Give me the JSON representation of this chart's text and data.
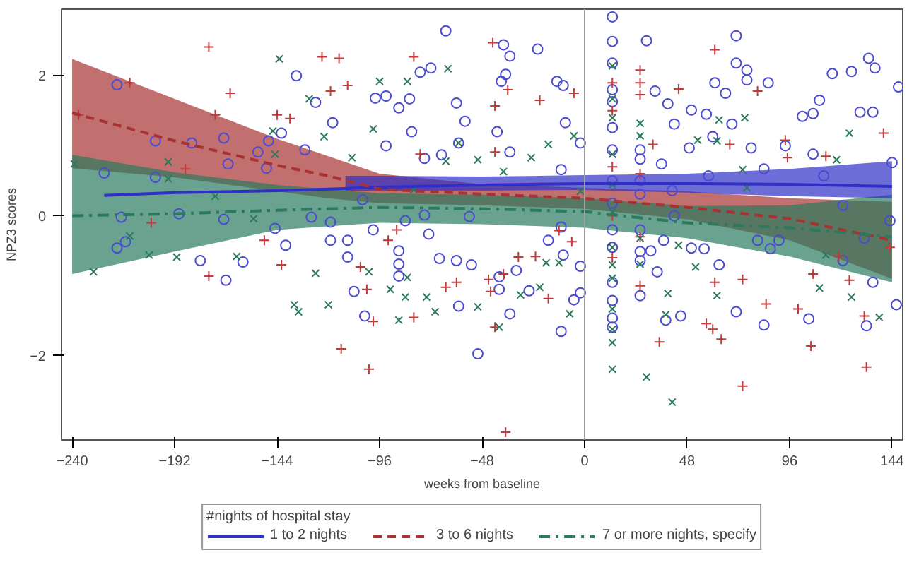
{
  "chart_data": {
    "type": "scatter",
    "xlabel": "weeks from baseline",
    "ylabel": "NPZ3 scores",
    "legend_title": "#nights of hospital stay",
    "legend": "bottom",
    "grid": false,
    "xlim": [
      -245,
      149
    ],
    "ylim": [
      -3.2,
      2.95
    ],
    "xticks": [
      -240,
      -192,
      -144,
      -96,
      -48,
      0,
      48,
      96,
      144
    ],
    "yticks": [
      -2,
      0,
      2
    ],
    "ref_lines": [
      {
        "axis": "x",
        "value": 0,
        "color": "#a0a0a0"
      }
    ],
    "series": [
      {
        "type": "line",
        "name": "1 to 2 nights",
        "color": "#2f2fc8",
        "line_style": "solid",
        "x": [
          -225,
          -192,
          -144,
          -112,
          -96,
          -48,
          0,
          48,
          96,
          144
        ],
        "values": [
          0.29,
          0.33,
          0.36,
          0.39,
          0.41,
          0.44,
          0.46,
          0.46,
          0.45,
          0.42
        ],
        "lower": [
          null,
          null,
          null,
          0.36,
          0.36,
          0.36,
          0.37,
          0.33,
          0.28,
          0.25
        ],
        "upper": [
          null,
          null,
          null,
          0.57,
          0.57,
          0.56,
          0.58,
          0.6,
          0.67,
          0.78
        ]
      },
      {
        "type": "line",
        "name": "3 to 6 nights",
        "color": "#a83232",
        "line_style": "dashed",
        "x": [
          -240,
          -192,
          -144,
          -120,
          -96,
          -48,
          0,
          48,
          96,
          144
        ],
        "values": [
          1.47,
          1.07,
          0.72,
          0.57,
          0.38,
          0.31,
          0.25,
          0.12,
          -0.04,
          -0.35
        ],
        "lower": [
          0.68,
          0.55,
          0.35,
          0.25,
          0.18,
          0.15,
          0.1,
          -0.05,
          -0.35,
          -0.9
        ],
        "upper": [
          2.24,
          1.67,
          1.1,
          0.85,
          0.6,
          0.45,
          0.4,
          0.35,
          0.25,
          0.2
        ]
      },
      {
        "type": "line",
        "name": "7 or more nights, specify",
        "color": "#2a7a5e",
        "line_style": "dashdot",
        "x": [
          -240,
          -192,
          -144,
          -96,
          -48,
          0,
          48,
          96,
          144
        ],
        "values": [
          0.0,
          0.03,
          0.08,
          0.12,
          0.1,
          0.06,
          -0.1,
          -0.17,
          -0.3
        ],
        "lower": [
          -0.83,
          -0.51,
          -0.2,
          -0.1,
          -0.12,
          -0.17,
          -0.32,
          -0.58,
          -0.95
        ],
        "upper": [
          0.87,
          0.62,
          0.44,
          0.32,
          0.3,
          0.25,
          0.14,
          0.15,
          0.3
        ]
      },
      {
        "marker": "circle",
        "color": "#4b4bd2",
        "x": [
          -219,
          -225,
          -217,
          -219,
          -215,
          -201,
          -201,
          -190,
          -184,
          -180,
          -169,
          -167,
          -169,
          -168,
          -160,
          -153,
          -149,
          -148,
          -145,
          -142,
          -140,
          -135,
          -131,
          -128,
          -126,
          -119,
          -118,
          -119,
          -111,
          -111,
          -108,
          -103,
          -104,
          -99,
          -98,
          -93,
          -93,
          -87,
          -82,
          -81,
          -87,
          -87,
          -87,
          -77,
          -75,
          -72,
          -67,
          -65,
          -60,
          -59,
          -60,
          -59,
          -68,
          -73,
          -75,
          -84,
          -38,
          -35,
          -22,
          -37,
          -39,
          -13,
          -10,
          -56,
          -41,
          -9,
          -2,
          -11,
          -35,
          -54,
          -11,
          -17,
          -10,
          -2,
          -53,
          -40,
          -32,
          -26,
          -40,
          -35,
          -11,
          -50,
          -5,
          -2,
          13,
          13,
          13,
          13,
          13,
          13,
          13,
          13,
          13,
          13,
          13,
          13,
          13,
          13,
          13,
          26,
          26,
          26,
          26,
          26,
          26,
          26,
          26,
          29,
          33,
          39,
          42,
          36,
          41,
          50,
          49,
          57,
          60,
          61,
          66,
          71,
          71,
          76,
          76,
          86,
          69,
          78,
          84,
          58,
          42,
          37,
          31,
          50,
          56,
          63,
          34,
          38,
          45,
          71,
          84,
          87,
          91,
          94,
          102,
          107,
          110,
          107,
          116,
          125,
          133,
          136,
          129,
          135,
          121,
          131,
          121,
          135,
          132,
          105,
          147,
          144,
          143,
          146,
          112,
          81
        ],
        "values": [
          1.87,
          0.61,
          -0.02,
          -0.46,
          -0.37,
          1.07,
          0.55,
          0.03,
          1.04,
          -0.64,
          1.11,
          0.74,
          -0.05,
          -0.92,
          -0.66,
          0.91,
          0.68,
          1.07,
          -0.18,
          1.18,
          -0.42,
          2.0,
          0.94,
          -0.02,
          1.62,
          -0.35,
          1.33,
          -0.09,
          -0.35,
          -0.59,
          -1.08,
          -1.43,
          0.23,
          -0.2,
          1.68,
          1.71,
          1.0,
          1.54,
          1.67,
          1.2,
          -0.69,
          -0.86,
          -0.5,
          2.05,
          0.82,
          2.11,
          0.87,
          2.64,
          1.61,
          1.04,
          -0.64,
          -1.29,
          -0.61,
          -0.26,
          0.01,
          -0.07,
          2.44,
          2.28,
          2.38,
          2.02,
          1.92,
          1.92,
          1.86,
          1.35,
          1.2,
          1.33,
          1.04,
          0.66,
          0.91,
          -0.01,
          -0.16,
          -0.35,
          -0.56,
          -0.72,
          -0.7,
          -0.87,
          -0.78,
          -1.07,
          -1.05,
          -1.4,
          -1.65,
          -1.97,
          -1.2,
          -1.1,
          2.84,
          2.49,
          2.18,
          1.8,
          1.63,
          1.26,
          0.94,
          0.5,
          0.18,
          -0.2,
          -0.45,
          -0.95,
          -1.21,
          -1.46,
          -1.59,
          0.94,
          0.81,
          0.5,
          0.31,
          -0.2,
          -0.51,
          -0.64,
          -1.14,
          2.5,
          1.78,
          1.6,
          1.31,
          0.74,
          0.36,
          1.51,
          0.97,
          1.45,
          1.13,
          1.9,
          1.75,
          2.57,
          2.18,
          2.08,
          1.94,
          1.9,
          1.31,
          0.97,
          0.67,
          0.57,
          0.0,
          -0.35,
          -0.5,
          -0.46,
          -0.47,
          -0.7,
          -0.8,
          -1.49,
          -1.43,
          -1.37,
          -1.56,
          -0.47,
          -0.35,
          1.0,
          1.42,
          1.46,
          1.65,
          0.88,
          2.03,
          2.06,
          2.25,
          2.11,
          1.48,
          1.48,
          0.15,
          -0.32,
          -0.64,
          -0.95,
          -1.57,
          -1.47,
          1.84,
          0.76,
          -0.07,
          -1.27,
          0.57,
          -0.35
        ]
      },
      {
        "marker": "cross",
        "color": "#c03a3a",
        "x": [
          -176,
          -166,
          -173,
          -213,
          -237,
          -203,
          -187,
          -176,
          -150,
          -142,
          -144,
          -138,
          -123,
          -115,
          -119,
          -111,
          -114,
          -101,
          -105,
          -102,
          -92,
          -88,
          -80,
          -80,
          -77,
          -65,
          -60,
          -99,
          -43,
          -37,
          -42,
          -36,
          -21,
          -5,
          -42,
          -38,
          -45,
          -44,
          -17,
          -12,
          -6,
          -31,
          -23,
          -42,
          26,
          26,
          44,
          61,
          81,
          61,
          60,
          57,
          35,
          64,
          74,
          74,
          85,
          100,
          106,
          132,
          131,
          95,
          113,
          140,
          143,
          119,
          107,
          124,
          94,
          68,
          32,
          13,
          13,
          13,
          13,
          13,
          26,
          26,
          26,
          26
        ],
        "values": [
          2.41,
          1.75,
          1.44,
          1.9,
          1.44,
          -0.1,
          0.67,
          -0.86,
          -0.35,
          -0.7,
          1.44,
          1.39,
          2.27,
          2.25,
          1.78,
          1.86,
          -1.9,
          -2.19,
          -0.73,
          -1.05,
          -0.35,
          -0.2,
          2.27,
          -1.45,
          0.88,
          -1.02,
          -0.95,
          -1.51,
          2.47,
          -3.09,
          1.57,
          1.8,
          1.65,
          1.75,
          0.91,
          -0.83,
          -0.91,
          -1.08,
          -1.18,
          -0.21,
          -0.37,
          -0.59,
          -0.58,
          -1.59,
          2.08,
          1.73,
          1.81,
          2.37,
          1.78,
          -0.95,
          -1.62,
          -1.54,
          -1.8,
          -1.76,
          -2.43,
          -0.91,
          -1.26,
          -1.33,
          -1.86,
          -2.16,
          -1.43,
          0.83,
          0.85,
          1.18,
          -0.45,
          -0.58,
          -0.83,
          -0.92,
          1.08,
          1.02,
          1.02,
          1.9,
          1.5,
          0.7,
          0.0,
          -0.6,
          1.9,
          0.6,
          -0.3,
          -1.0
        ]
      },
      {
        "marker": "x",
        "color": "#2d7a5a",
        "x": [
          -239,
          -230,
          -213,
          -195,
          -195,
          -204,
          -191,
          -173,
          -163,
          -155,
          -143,
          -146,
          -145,
          -129,
          -122,
          -126,
          -136,
          -134,
          -120,
          -109,
          -99,
          -96,
          -83,
          -101,
          -91,
          -87,
          -83,
          -84,
          -74,
          -70,
          -64,
          -65,
          -80,
          -59,
          -50,
          -38,
          -25,
          -17,
          -5,
          -50,
          -40,
          -30,
          -21,
          -7,
          -18,
          -12,
          -2,
          13,
          13,
          13,
          13,
          13,
          13,
          13,
          13,
          13,
          13,
          13,
          13,
          13,
          26,
          26,
          26,
          26,
          29,
          41,
          39,
          38,
          52,
          44,
          63,
          75,
          53,
          62,
          74,
          76,
          113,
          110,
          125,
          138,
          124,
          118,
          62
        ],
        "values": [
          0.74,
          -0.8,
          -0.29,
          0.53,
          0.77,
          -0.56,
          -0.59,
          0.28,
          -0.58,
          -0.04,
          2.24,
          1.21,
          0.88,
          1.67,
          1.13,
          -0.82,
          -1.27,
          -1.37,
          -1.27,
          0.83,
          1.24,
          1.92,
          1.92,
          -0.8,
          -1.05,
          -1.49,
          -0.88,
          -1.16,
          -1.16,
          -1.37,
          2.1,
          0.78,
          0.37,
          1.04,
          0.8,
          0.63,
          0.83,
          1.02,
          1.14,
          -1.3,
          -1.59,
          -1.13,
          -1.02,
          -1.4,
          -0.67,
          -0.67,
          0.35,
          2.14,
          1.67,
          1.4,
          0.88,
          0.44,
          0.06,
          -0.45,
          -0.7,
          -0.89,
          -1.33,
          -1.62,
          -1.81,
          -2.19,
          1.32,
          1.14,
          -0.32,
          -0.69,
          -2.3,
          -2.66,
          -1.11,
          -1.41,
          -0.73,
          -0.42,
          1.37,
          1.4,
          1.08,
          1.07,
          0.66,
          0.4,
          -0.56,
          -1.03,
          -1.16,
          -1.45,
          1.18,
          0.8,
          -1.14
        ]
      }
    ]
  }
}
